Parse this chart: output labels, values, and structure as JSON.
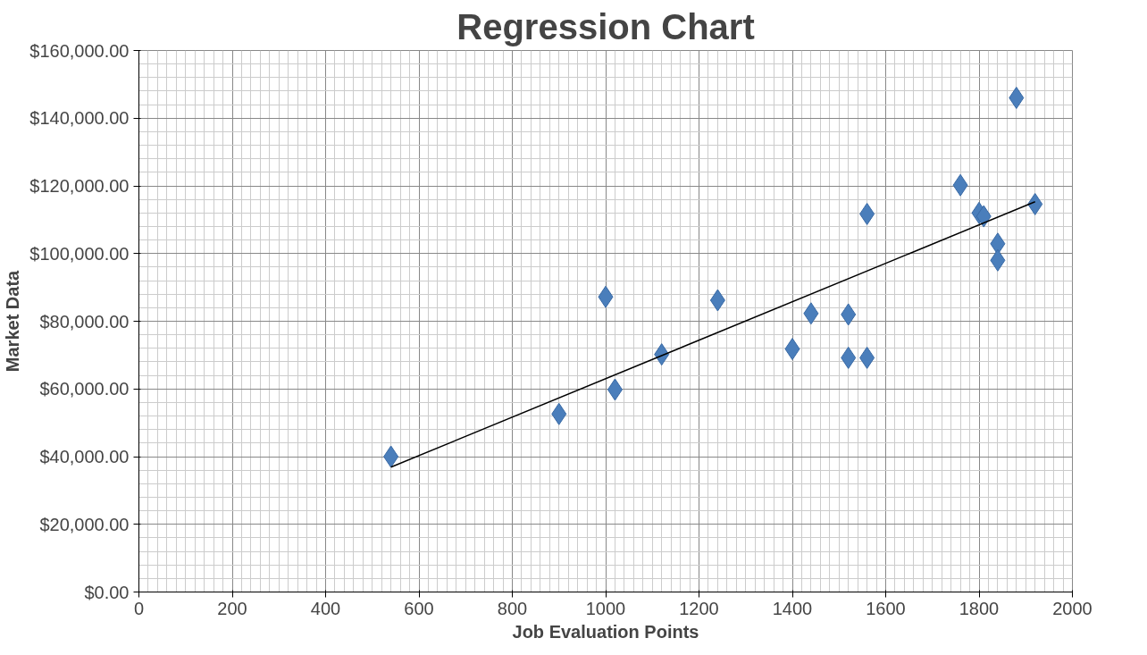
{
  "chart_data": {
    "type": "scatter",
    "title": "Regression Chart",
    "xlabel": "Job Evaluation Points",
    "ylabel": "Market Data",
    "series": [
      {
        "type": "scatter",
        "color": "#4a7ebb",
        "marker": "diamond",
        "x": [
          540,
          900,
          1000,
          1020,
          1120,
          1240,
          1400,
          1440,
          1520,
          1520,
          1560,
          1560,
          1760,
          1800,
          1810,
          1840,
          1840,
          1880,
          1920
        ],
        "values": [
          40000,
          52600,
          87200,
          59800,
          70200,
          86200,
          71800,
          82300,
          82000,
          69200,
          69200,
          111700,
          120200,
          112000,
          111000,
          102900,
          98000,
          146000,
          114600
        ]
      },
      {
        "type": "line",
        "color": "#000000",
        "marker": "none",
        "line_style": "solid",
        "x": [
          540,
          1920
        ],
        "values": [
          36900,
          115300
        ]
      }
    ],
    "xlim": [
      0,
      2000
    ],
    "xticks": [
      0,
      200,
      400,
      600,
      800,
      1000,
      1200,
      1400,
      1600,
      1800,
      2000
    ],
    "ylim": [
      0,
      160000
    ],
    "yticks": [
      {
        "value": 0,
        "label": "$0.00"
      },
      {
        "value": 20000,
        "label": "$20,000.00"
      },
      {
        "value": 40000,
        "label": "$40,000.00"
      },
      {
        "value": 60000,
        "label": "$60,000.00"
      },
      {
        "value": 80000,
        "label": "$80,000.00"
      },
      {
        "value": 100000,
        "label": "$100,000.00"
      },
      {
        "value": 120000,
        "label": "$120,000.00"
      },
      {
        "value": 140000,
        "label": "$140,000.00"
      },
      {
        "value": 160000,
        "label": "$160,000.00"
      }
    ],
    "grid": true
  }
}
